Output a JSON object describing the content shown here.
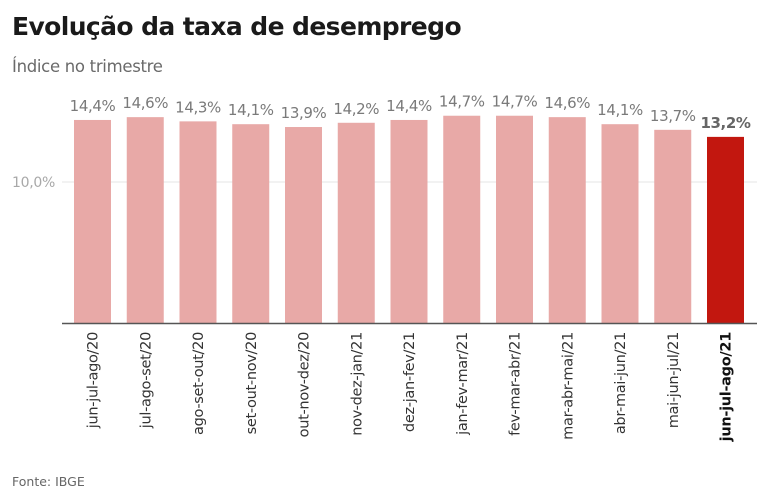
{
  "header": {
    "title": "Evolução da taxa de desemprego",
    "subtitle": "Índice no trimestre"
  },
  "footer": {
    "source": "Fonte: IBGE"
  },
  "colors": {
    "bar": "#e8a9a7",
    "highlight": "#c2170f",
    "axis": "#555555",
    "grid": "#e4e4e4"
  },
  "chart_data": {
    "type": "bar",
    "title": "Evolução da taxa de desemprego",
    "subtitle": "Índice no trimestre",
    "xlabel": "",
    "ylabel": "",
    "ylim": [
      0,
      16
    ],
    "grid": true,
    "yticks": [
      10
    ],
    "ytick_labels": [
      "10,0%"
    ],
    "categories": [
      "jun-jul-ago/20",
      "jul-ago-set/20",
      "ago-set-out/20",
      "set-out-nov/20",
      "out-nov-dez/20",
      "nov-dez-jan/21",
      "dez-jan-fev/21",
      "jan-fev-mar/21",
      "fev-mar-abr/21",
      "mar-abr-mai/21",
      "abr-mai-jun/21",
      "mai-jun-jul/21",
      "jun-jul-ago/21"
    ],
    "values": [
      14.4,
      14.6,
      14.3,
      14.1,
      13.9,
      14.2,
      14.4,
      14.7,
      14.7,
      14.6,
      14.1,
      13.7,
      13.2
    ],
    "value_labels": [
      "14,4%",
      "14,6%",
      "14,3%",
      "14,1%",
      "13,9%",
      "14,2%",
      "14,4%",
      "14,7%",
      "14,7%",
      "14,6%",
      "14,1%",
      "13,7%",
      "13,2%"
    ],
    "highlight_index": 12,
    "source": "Fonte: IBGE"
  }
}
